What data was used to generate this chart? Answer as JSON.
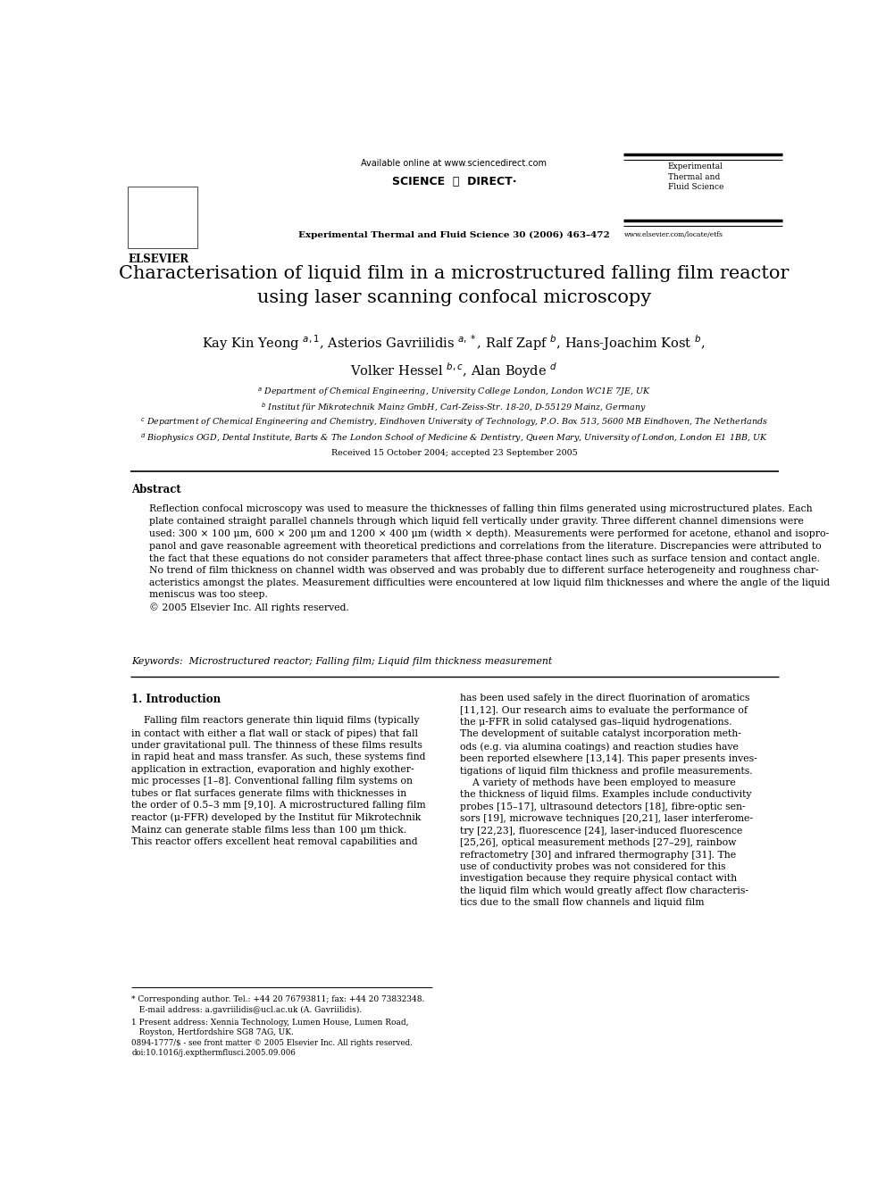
{
  "bg_color": "#ffffff",
  "page_width": 9.92,
  "page_height": 13.23,
  "header_available_online": "Available online at www.sciencedirect.com",
  "header_sciencedirect": "SCIENCE  ⓓ  DIRECT·",
  "header_journal_name": "Experimental Thermal and Fluid Science 30 (2006) 463–472",
  "header_journal_logo_text": "Experimental\nThermal and\nFluid Science",
  "header_elsevier": "ELSEVIER",
  "header_website": "www.elsevier.com/locate/etfs",
  "title": "Characterisation of liquid film in a microstructured falling film reactor\nusing laser scanning confocal microscopy",
  "affil_a": "a Department of Chemical Engineering, University College London, London WC1E 7JE, UK",
  "affil_b": "b Institut für Mikrotechnik Mainz GmbH, Carl-Zeiss-Str. 18-20, D-55129 Mainz, Germany",
  "affil_c": "c Department of Chemical Engineering and Chemistry, Eindhoven University of Technology, P.O. Box 513, 5600 MB Eindhoven, The Netherlands",
  "affil_d": "d Biophysics OGD, Dental Institute, Barts & The London School of Medicine & Dentistry, Queen Mary, University of London, London E1 1BB, UK",
  "received": "Received 15 October 2004; accepted 23 September 2005",
  "abstract_title": "Abstract",
  "abstract_text": "Reflection confocal microscopy was used to measure the thicknesses of falling thin films generated using microstructured plates. Each\nplate contained straight parallel channels through which liquid fell vertically under gravity. Three different channel dimensions were\nused: 300 × 100 μm, 600 × 200 μm and 1200 × 400 μm (width × depth). Measurements were performed for acetone, ethanol and isopro-\npanol and gave reasonable agreement with theoretical predictions and correlations from the literature. Discrepancies were attributed to\nthe fact that these equations do not consider parameters that affect three-phase contact lines such as surface tension and contact angle.\nNo trend of film thickness on channel width was observed and was probably due to different surface heterogeneity and roughness char-\nacteristics amongst the plates. Measurement difficulties were encountered at low liquid film thicknesses and where the angle of the liquid\nmeniscus was too steep.\n© 2005 Elsevier Inc. All rights reserved.",
  "keywords": "Keywords:  Microstructured reactor; Falling film; Liquid film thickness measurement",
  "section1_title": "1. Introduction",
  "col1_text": "    Falling film reactors generate thin liquid films (typically\nin contact with either a flat wall or stack of pipes) that fall\nunder gravitational pull. The thinness of these films results\nin rapid heat and mass transfer. As such, these systems find\napplication in extraction, evaporation and highly exother-\nmic processes [1–8]. Conventional falling film systems on\ntubes or flat surfaces generate films with thicknesses in\nthe order of 0.5–3 mm [9,10]. A microstructured falling film\nreactor (μ-FFR) developed by the Institut für Mikrotechnik\nMainz can generate stable films less than 100 μm thick.\nThis reactor offers excellent heat removal capabilities and",
  "col2_text": "has been used safely in the direct fluorination of aromatics\n[11,12]. Our research aims to evaluate the performance of\nthe μ-FFR in solid catalysed gas–liquid hydrogenations.\nThe development of suitable catalyst incorporation meth-\nods (e.g. via alumina coatings) and reaction studies have\nbeen reported elsewhere [13,14]. This paper presents inves-\ntigations of liquid film thickness and profile measurements.\n    A variety of methods have been employed to measure\nthe thickness of liquid films. Examples include conductivity\nprobes [15–17], ultrasound detectors [18], fibre-optic sen-\nsors [19], microwave techniques [20,21], laser interferome-\ntry [22,23], fluorescence [24], laser-induced fluorescence\n[25,26], optical measurement methods [27–29], rainbow\nrefractometry [30] and infrared thermography [31]. The\nuse of conductivity probes was not considered for this\ninvestigation because they require physical contact with\nthe liquid film which would greatly affect flow characteris-\ntics due to the small flow channels and liquid film",
  "footnote_star": "* Corresponding author. Tel.: +44 20 76793811; fax: +44 20 73832348.\n   E-mail address: a.gavriilidis@ucl.ac.uk (A. Gavriilidis).",
  "footnote_1": "1 Present address: Xennia Technology, Lumen House, Lumen Road,\n   Royston, Hertfordshire SG8 7AG, UK.",
  "footer": "0894-1777/$ - see front matter © 2005 Elsevier Inc. All rights reserved.\ndoi:10.1016/j.expthermflusci.2005.09.006"
}
